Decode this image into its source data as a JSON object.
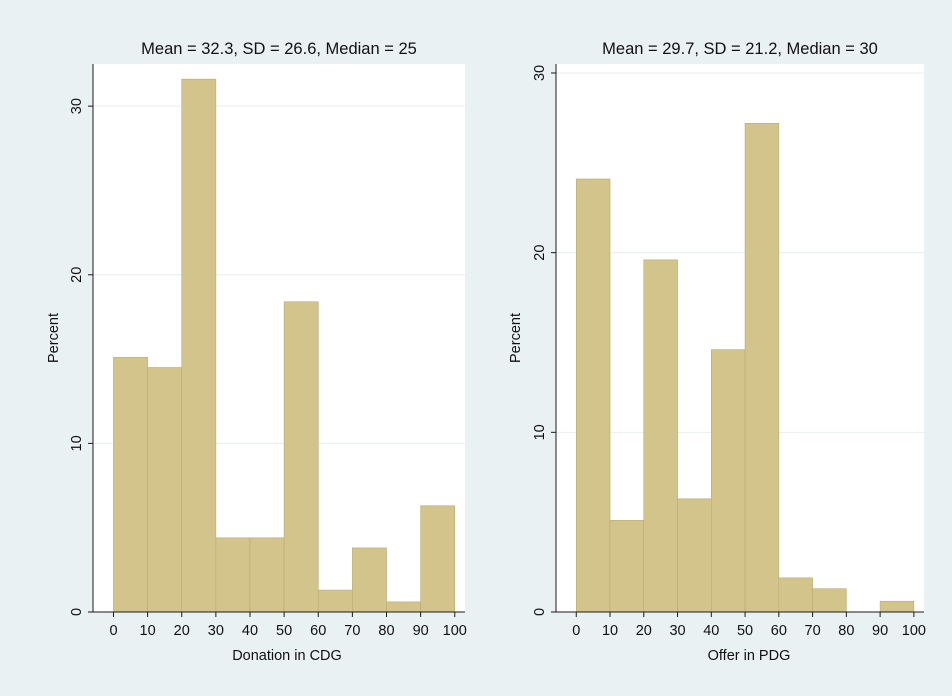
{
  "chart_data": [
    {
      "type": "bar",
      "title": "Mean = 32.3, SD = 26.6, Median = 25",
      "xlabel": "Donation in CDG",
      "ylabel": "Percent",
      "bin_edges": [
        0,
        10,
        20,
        30,
        40,
        50,
        60,
        70,
        80,
        90,
        100
      ],
      "values": [
        15.1,
        14.5,
        31.6,
        4.4,
        4.4,
        18.4,
        1.3,
        3.8,
        0.6,
        6.3
      ],
      "xticks": [
        "0",
        "10",
        "20",
        "30",
        "40",
        "50",
        "60",
        "70",
        "80",
        "90",
        "100"
      ],
      "yticks": [
        "0",
        "10",
        "20",
        "30"
      ],
      "xlim": [
        -6,
        103
      ],
      "ylim": [
        0,
        32.5
      ],
      "grid": "horizontal"
    },
    {
      "type": "bar",
      "title": "Mean = 29.7, SD = 21.2, Median = 30",
      "xlabel": "Offer in PDG",
      "ylabel": "Percent",
      "bin_edges": [
        0,
        10,
        20,
        30,
        40,
        50,
        60,
        70,
        80,
        90,
        100
      ],
      "values": [
        24.1,
        5.1,
        19.6,
        6.3,
        14.6,
        27.2,
        1.9,
        1.3,
        0,
        0.6
      ],
      "xticks": [
        "0",
        "10",
        "20",
        "30",
        "40",
        "50",
        "60",
        "70",
        "80",
        "90",
        "100"
      ],
      "yticks": [
        "0",
        "10",
        "20",
        "30"
      ],
      "xlim": [
        -6,
        103
      ],
      "ylim": [
        0,
        30.5
      ],
      "grid": "horizontal"
    }
  ]
}
